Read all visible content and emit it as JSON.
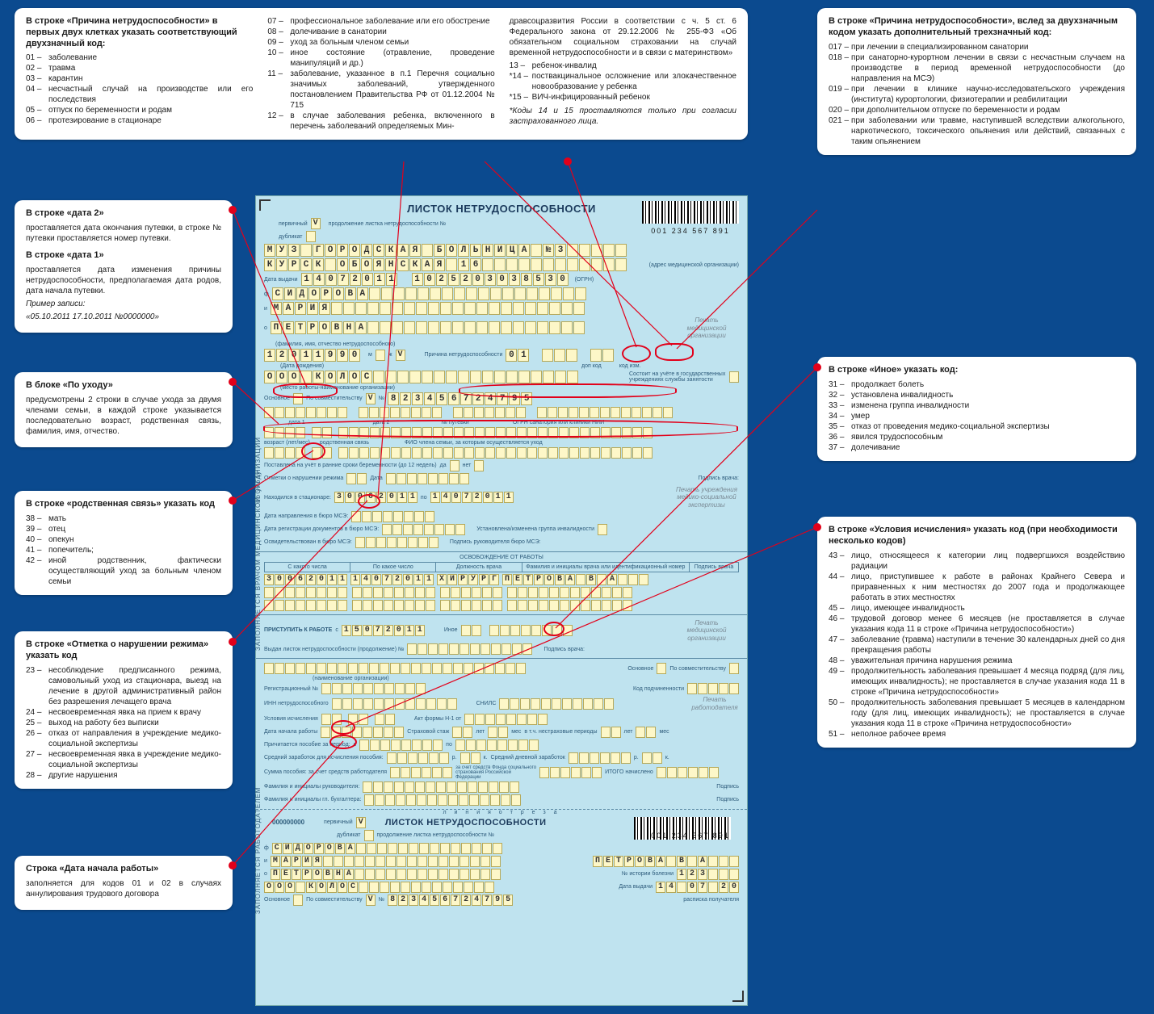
{
  "colors": {
    "bg": "#0b4a8f",
    "form_bg": "#bfe3ef",
    "cell_bg": "#fdf7c8",
    "red": "#e2001a",
    "label": "#2c5a7a",
    "seal": "#7a8a95"
  },
  "boxA": {
    "title": "В строке «Причина нетрудоспособности» в первых двух клетках указать соответствующий двухзначный код:",
    "col1": [
      {
        "c": "01 –",
        "t": "заболевание"
      },
      {
        "c": "02 –",
        "t": "травма"
      },
      {
        "c": "03 –",
        "t": "карантин"
      },
      {
        "c": "04 –",
        "t": "несчастный случай на производстве или его последствия"
      },
      {
        "c": "05 –",
        "t": "отпуск по беременности и родам"
      },
      {
        "c": "06 –",
        "t": "протезирование в стационаре"
      }
    ],
    "col2": [
      {
        "c": "07 –",
        "t": "профессиональное заболевание или его обострение"
      },
      {
        "c": "08 –",
        "t": "долечивание в санатории"
      },
      {
        "c": "09 –",
        "t": "уход за больным членом семьи"
      },
      {
        "c": "10 –",
        "t": "иное состояние (отравление, проведение манипуляций и др.)"
      },
      {
        "c": "11 –",
        "t": "заболевание, указанное в п.1 Перечня социально значимых заболеваний, утвержденного постановлением Правительства РФ от 01.12.2004 № 715"
      },
      {
        "c": "12 –",
        "t": "в случае заболевания ребенка, включенного в перечень заболеваний определяемых Мин-"
      }
    ],
    "col3pre": "дравсоцразвития России в соответствии с ч. 5 ст. 6 Федерального закона от 29.12.2006 № 255-ФЗ «Об обязательном социальном страховании на случай временной нетрудоспособности и в связи с материнством»",
    "col3": [
      {
        "c": "13 –",
        "t": "ребенок-инвалид"
      },
      {
        "c": "*14 –",
        "t": "поствакцинальное осложнение или злокачественное новообразование у ребенка"
      },
      {
        "c": "*15 –",
        "t": "ВИЧ-инфицированный ребенок"
      }
    ],
    "note": "*Коды 14 и 15 проставляются только при согласии застрахованного лица."
  },
  "boxB": {
    "title": "В строке «Причина нетрудоспособности», вслед за двухзначным кодом указать дополнительный трехзначный код:",
    "items": [
      {
        "c": "017 –",
        "t": "при лечении в специализированном санатории"
      },
      {
        "c": "018 –",
        "t": "при санаторно-курортном лечении в связи с несчастным случаем на производстве в период временной нетрудоспособности (до направления на МСЭ)"
      },
      {
        "c": "019 –",
        "t": "при лечении в клинике научно-исследовательского учреждения (института) курортологии, физиотерапии и реабилитации"
      },
      {
        "c": "020 –",
        "t": "при дополнительном отпуске по беременности и родам"
      },
      {
        "c": "021 –",
        "t": "при заболевании или травме, наступившей вследствии алкогольного, наркотического, токсического опьянения или действий, связанных с таким опьянением"
      }
    ]
  },
  "boxC": {
    "t1": "В строке «дата 2»",
    "p1": "проставляется дата окончания путевки, в строке № путевки проставляется номер путевки.",
    "t2": "В строке «дата 1»",
    "p2": "проставляется дата изменения причины нетрудоспособности, предполагаемая дата родов, дата начала путевки.",
    "p3": "Пример записи:",
    "p4": "«05.10.2011 17.10.2011  №0000000»"
  },
  "boxD": {
    "title": "В блоке «По уходу»",
    "p": "предусмотрены 2 строки в случае ухода за двумя членами семьи, в каждой строке указывается последовательно возраст, родственная связь, фамилия, имя, отчество."
  },
  "boxE": {
    "title": "В строке «родственная связь» указать код",
    "items": [
      {
        "c": "38 –",
        "t": "мать"
      },
      {
        "c": "39 –",
        "t": "отец"
      },
      {
        "c": "40 –",
        "t": "опекун"
      },
      {
        "c": "41 –",
        "t": "попечитель;"
      },
      {
        "c": "42 –",
        "t": "иной родственник, фактически осуществляющий уход за больным членом семьи"
      }
    ]
  },
  "boxF": {
    "title": "В строке «Отметка о нарушении режима» указать код",
    "items": [
      {
        "c": "23 –",
        "t": "несоблюдение предписанного режима, самовольный уход из стационара, выезд на лечение в другой административный район без разрешения лечащего врача"
      },
      {
        "c": "24 –",
        "t": "несвоевременная явка на прием к врачу"
      },
      {
        "c": "25 –",
        "t": "выход на работу без выписки"
      },
      {
        "c": "26 –",
        "t": "отказ от направления в учреждение медико-социальной экспертизы"
      },
      {
        "c": "27 –",
        "t": "несвоевременная явка в учреждение медико-социальной экспертизы"
      },
      {
        "c": "28 –",
        "t": "другие нарушения"
      }
    ]
  },
  "boxG": {
    "title": "Строка «Дата начала работы»",
    "p": "заполняется для кодов 01 и 02 в случаях аннулирования трудового договора"
  },
  "boxH": {
    "title": "В строке «Иное» указать код:",
    "items": [
      {
        "c": "31 –",
        "t": "продолжает болеть"
      },
      {
        "c": "32 –",
        "t": "установлена инвалидность"
      },
      {
        "c": "33 –",
        "t": "изменена группа инвалидности"
      },
      {
        "c": "34 –",
        "t": "умер"
      },
      {
        "c": "35 –",
        "t": "отказ от проведения медико-социальной экспертизы"
      },
      {
        "c": "36 –",
        "t": "явился трудоспособным"
      },
      {
        "c": "37 –",
        "t": "долечивание"
      }
    ]
  },
  "boxI": {
    "title": "В строке «Условия исчисления» указать код (при необходимости несколько кодов)",
    "items": [
      {
        "c": "43 –",
        "t": "лицо, относящееся к категории лиц подвергшихся воздействию радиации"
      },
      {
        "c": "44 –",
        "t": "лицо, приступившее к работе в районах Крайнего Севера и приравненных к ним местностях до 2007 года и продолжающее работать в этих местностях"
      },
      {
        "c": "45 –",
        "t": "лицо, имеющее инвалидность"
      },
      {
        "c": "46 –",
        "t": "трудовой договор менее 6 месяцев (не проставляется в случае указания кода 11 в строке «Причина нетрудоспособности»)"
      },
      {
        "c": "47 –",
        "t": "заболевание (травма) наступили в течение 30 календарных дней со дня прекращения работы"
      },
      {
        "c": "48 –",
        "t": "уважительная причина нарушения режима"
      },
      {
        "c": "49 –",
        "t": "продолжительность заболевания превышает 4 месяца подряд (для лиц, имеющих инвалидность); не проставляется в случае указания кода 11 в строке «Причина нетрудоспособности»"
      },
      {
        "c": "50 –",
        "t": "продолжительность заболевания превышает 5 месяцев в календарном году (для лиц, имеющих инвалидность); не проставляется в случае указания кода 11 в строке «Причина нетрудоспособности»"
      },
      {
        "c": "51 –",
        "t": "неполное рабочее время"
      }
    ]
  },
  "form": {
    "title": "ЛИСТОК НЕТРУДОСПОСОБНОСТИ",
    "barcode": "001 234 567 891",
    "primary_label": "первичный",
    "duplicate_label": "дубликат",
    "cont_label": "продолжение листка нетрудоспособности №",
    "org": "МУЗ ГОРОДСКАЯ БОЛЬНИЦА №3",
    "addr": "КУРСК ОБОЯНСКАЯ 16",
    "addr_lbl": "(адрес медицинской организации)",
    "date_lbl": "Дата выдачи",
    "date": "14-07-2011",
    "ogrn_lbl": "(ОГРН)",
    "ogrn": "1025203038530",
    "f_lbl": "ф",
    "i_lbl": "и",
    "o_lbl": "о",
    "f": "СИДОРОВА",
    "i": "МАРИЯ",
    "o": "ПЕТРОВНА",
    "fio_lbl": "(фамилия, имя, отчество нетрудоспособного)",
    "bdate": "12-01-1990",
    "bdate_lbl": "(Дата рождения)",
    "sex_m": "м",
    "sex_f": "ж",
    "check": "V",
    "cause_lbl": "Причина нетрудоспособности",
    "cause": "01",
    "dopkod_lbl": "доп код",
    "kodizm_lbl": "код изм.",
    "employer_lbl": "(место работы-наименование организации)",
    "employer": "ООО КОЛОС",
    "reg_lbl": "Состоит на учёте в государственных учреждениях службы занятости",
    "main_lbl": "Основное",
    "compat_lbl": "По совместительству",
    "num_lbl": "№",
    "inn": "823456724795",
    "date1_lbl": "дата 1",
    "date2_lbl": "дата 2",
    "voucher_lbl": "№ путевки",
    "ogrn2_lbl": "ОГРН санатория или клиники НИИ",
    "care_lbl": "по уходу",
    "age_lbl": "возраст (лет/мес)",
    "rel_lbl": "родственная связь",
    "fio_care_lbl": "ФИО члена семьи, за которым осуществляется уход",
    "preg_lbl": "Поставлена на учёт в ранние сроки беременности (до 12 недель)",
    "yes": "да",
    "no": "нет",
    "viol_lbl": "Отметки о нарушении режима",
    "date_short": "Дата",
    "sign_lbl": "Подпись врача:",
    "hosp_lbl": "Находился в стационаре:",
    "hosp_from": "30-06-2011",
    "hosp_to": "14-07-2011",
    "to_lbl": "по",
    "mse1": "Дата направления в бюро МСЭ:",
    "mse2": "Дата регистрации документов в бюро МСЭ:",
    "mse3": "Освидетельствован в бюро МСЭ:",
    "inv_lbl": "Установлена/изменена группа инвалидности",
    "mse_sign": "Подпись руководителя бюро МСЭ:",
    "release_title": "ОСВОБОЖДЕНИЕ ОТ РАБОТЫ",
    "rh_from": "С какого числа",
    "rh_to": "По какое число",
    "rh_pos": "Должность врача",
    "rh_fio": "Фамилия и инициалы врача или идентификационный номер",
    "rh_sign": "Подпись врача",
    "r_from": "30-06-2011",
    "r_to": "14-07-2011",
    "r_pos": "ХИРУРГ",
    "r_fio": "ПЕТРОВА В А",
    "start_lbl": "ПРИСТУПИТЬ К РАБОТЕ",
    "with_lbl": "с",
    "start": "15-07-2011",
    "other_lbl": "Иное",
    "issued_lbl": "Выдан листок нетрудоспособности (продолжение) №",
    "seal_org": "Печать медицинской организации",
    "seal_mse": "Печать учреждения медико-социальной экспертизы",
    "seal_emp": "Печать работодателя",
    "emp_section": "ЗАПОЛНЯЕТСЯ РАБОТОДАТЕЛЕМ",
    "med_section": "ЗАПОЛНЯЕТСЯ ВРАЧОМ МЕДИЦИНСКОЙ ОРГАНИЗАЦИИ",
    "emp_name_lbl": "(наименование организации)",
    "emp_reg": "Регистрационный №",
    "emp_sub": "Код подчиненности",
    "emp_inn": "ИНН нетрудоспособного",
    "emp_snils": "СНИЛС",
    "emp_cond": "Условия исчисления",
    "emp_act": "Акт формы Н-1 от",
    "emp_start": "Дата начала работы",
    "emp_stage": "Страховой стаж",
    "years": "лет",
    "months": "мес",
    "emp_nonins": "в т.ч. нестраховые периоды",
    "emp_period": "Причитается пособие за период:",
    "emp_avg": "Средний заработок для исчисления пособия:",
    "emp_dayavg": "Средний дневной заработок",
    "rub": "р.",
    "kop": "к.",
    "emp_sum1": "Сумма пособия: за счет средств работодателя",
    "emp_sum2": "за счет средств Фонда социального страхования Российской Федерации",
    "emp_total": "ИТОГО начислено",
    "emp_head": "Фамилия и инициалы руководителя:",
    "emp_acc": "Фамилия и инициалы гл. бухгалтера:",
    "emp_sign": "Подпись",
    "tear": "л и н и я   о т р е з а",
    "stub_num": "000000000",
    "stub_hist": "№ истории болезни",
    "stub_hist_v": "123",
    "stub_date": "14 07 2011",
    "stub_sign": "расписка получателя"
  }
}
